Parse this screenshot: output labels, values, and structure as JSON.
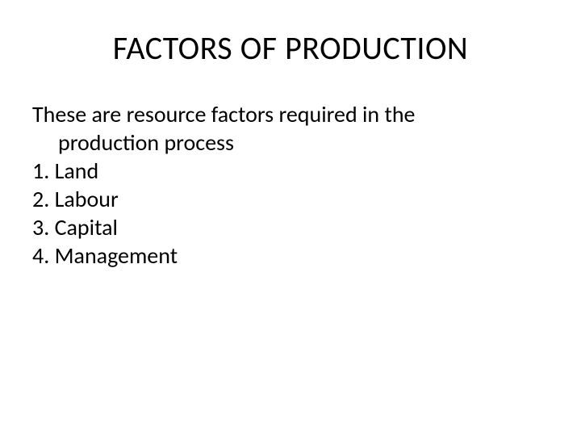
{
  "slide": {
    "title": "FACTORS OF PRODUCTION",
    "intro_line1": "These are resource factors required in the",
    "intro_line2": "production process",
    "items": [
      "1. Land",
      "2. Labour",
      "3. Capital",
      "4.  Management"
    ],
    "background_color": "#ffffff",
    "text_color": "#000000",
    "title_fontsize": 40,
    "body_fontsize": 28,
    "font_family": "Calibri"
  }
}
